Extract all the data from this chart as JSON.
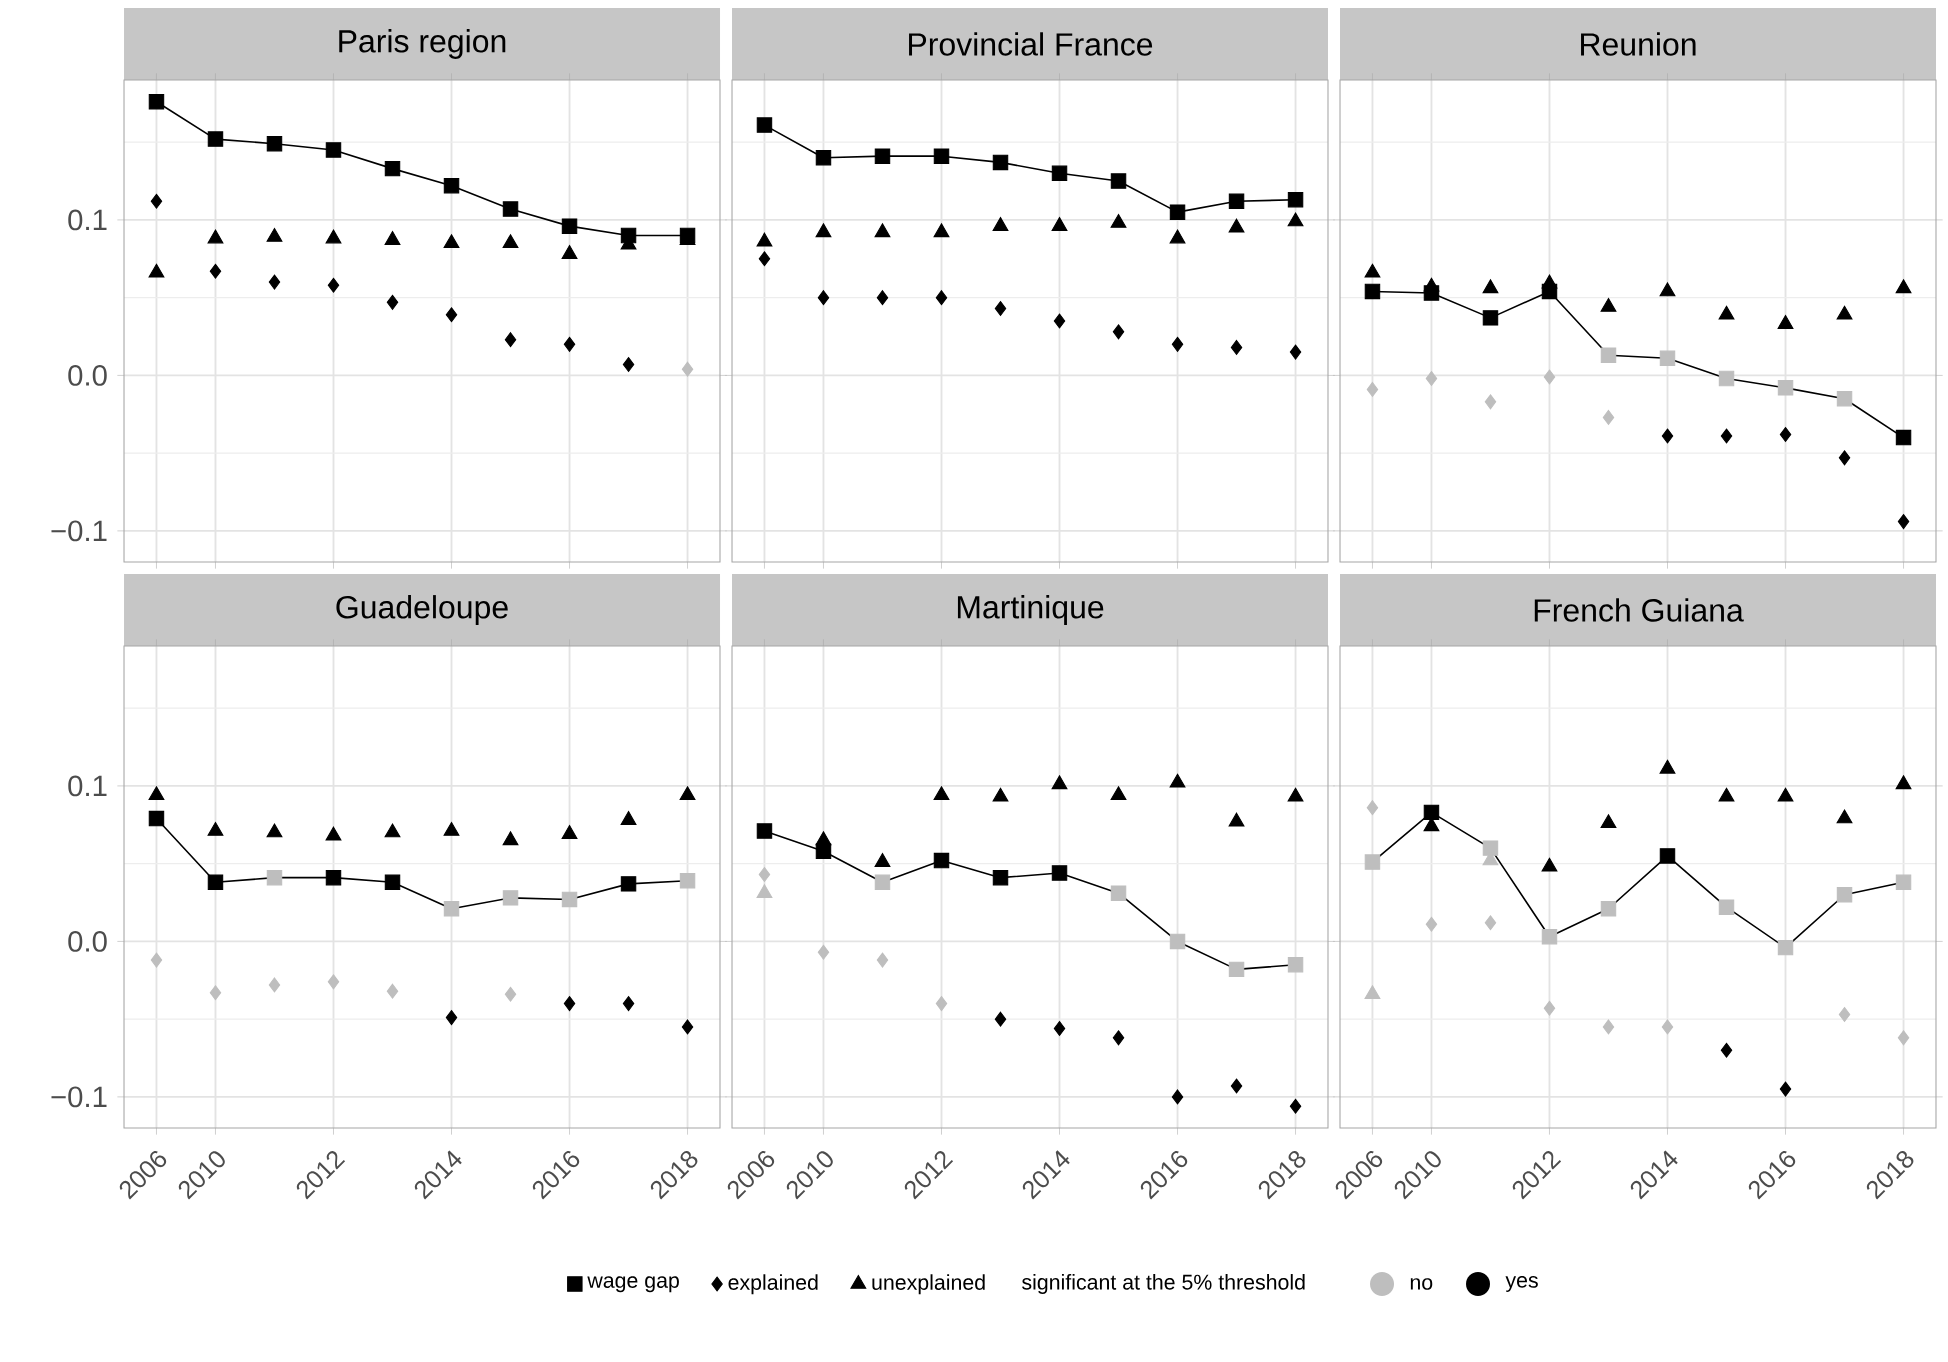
{
  "chart_data": [
    {
      "type": "scatter",
      "title": "Paris region",
      "categories": [
        "2006",
        "2010",
        null,
        "2012",
        null,
        "2014",
        null,
        "2016",
        null,
        "2018"
      ],
      "ylim": [
        -0.12,
        0.19
      ],
      "yticks": [
        {
          "value": -0.1,
          "label": "−0.1"
        },
        {
          "value": -0.05,
          "label": null
        },
        {
          "value": 0,
          "label": "0.0"
        },
        {
          "value": 0.05,
          "label": null
        },
        {
          "value": 0.1,
          "label": "0.1"
        },
        {
          "value": 0.15,
          "label": null
        }
      ],
      "grid": true,
      "tick_labels": "y",
      "series": [
        {
          "type": "line",
          "marker": "square",
          "color": "#000000",
          "values": [
            0.176,
            0.152,
            0.149,
            0.145,
            0.133,
            0.122,
            0.107,
            0.096,
            0.09,
            0.09
          ],
          "colors": [
            "#000000",
            "#000000",
            "#000000",
            "#000000",
            "#000000",
            "#000000",
            "#000000",
            "#000000",
            "#000000",
            "#000000"
          ]
        },
        {
          "type": "scatter",
          "marker": "diamond",
          "values": [
            0.112,
            0.067,
            0.06,
            0.058,
            0.047,
            0.039,
            0.023,
            0.02,
            0.007,
            0.004
          ],
          "colors": [
            "#000000",
            "#000000",
            "#000000",
            "#000000",
            "#000000",
            "#000000",
            "#000000",
            "#000000",
            "#000000",
            "#bebebe"
          ]
        },
        {
          "type": "scatter",
          "marker": "triangle",
          "values": [
            0.066,
            0.088,
            0.089,
            0.088,
            0.087,
            0.085,
            0.085,
            0.078,
            0.084,
            0.087
          ],
          "colors": [
            "#000000",
            "#000000",
            "#000000",
            "#000000",
            "#000000",
            "#000000",
            "#000000",
            "#000000",
            "#000000",
            "#000000"
          ]
        }
      ]
    },
    {
      "type": "scatter",
      "title": "Provincial France",
      "categories": [
        "2006",
        "2010",
        null,
        "2012",
        null,
        "2014",
        null,
        "2016",
        null,
        "2018"
      ],
      "ylim": [
        -0.12,
        0.19
      ],
      "yticks": [
        -0.1,
        {
          "value": -0.05,
          "label": null
        },
        0,
        {
          "value": 0.05,
          "label": null
        },
        0.1,
        {
          "value": 0.15,
          "label": null
        }
      ],
      "grid": true,
      "tick_labels": false,
      "series": [
        {
          "type": "line",
          "marker": "square",
          "color": "#000000",
          "values": [
            0.161,
            0.14,
            0.141,
            0.141,
            0.137,
            0.13,
            0.125,
            0.105,
            0.112,
            0.113
          ],
          "colors": [
            "#000000",
            "#000000",
            "#000000",
            "#000000",
            "#000000",
            "#000000",
            "#000000",
            "#000000",
            "#000000",
            "#000000"
          ]
        },
        {
          "type": "scatter",
          "marker": "diamond",
          "values": [
            0.075,
            0.05,
            0.05,
            0.05,
            0.043,
            0.035,
            0.028,
            0.02,
            0.018,
            0.015
          ],
          "colors": [
            "#000000",
            "#000000",
            "#000000",
            "#000000",
            "#000000",
            "#000000",
            "#000000",
            "#000000",
            "#000000",
            "#000000"
          ]
        },
        {
          "type": "scatter",
          "marker": "triangle",
          "values": [
            0.086,
            0.092,
            0.092,
            0.092,
            0.096,
            0.096,
            0.098,
            0.088,
            0.095,
            0.099
          ],
          "colors": [
            "#000000",
            "#000000",
            "#000000",
            "#000000",
            "#000000",
            "#000000",
            "#000000",
            "#000000",
            "#000000",
            "#000000"
          ]
        }
      ]
    },
    {
      "type": "scatter",
      "title": "Reunion",
      "categories": [
        "2006",
        "2010",
        null,
        "2012",
        null,
        "2014",
        null,
        "2016",
        null,
        "2018"
      ],
      "ylim": [
        -0.12,
        0.19
      ],
      "yticks": [
        -0.1,
        {
          "value": -0.05,
          "label": null
        },
        0,
        {
          "value": 0.05,
          "label": null
        },
        0.1,
        {
          "value": 0.15,
          "label": null
        }
      ],
      "grid": true,
      "tick_labels": false,
      "series": [
        {
          "type": "line",
          "marker": "square",
          "color": "#000000",
          "values": [
            0.054,
            0.053,
            0.037,
            0.054,
            0.013,
            0.011,
            -0.002,
            -0.008,
            -0.015,
            -0.04
          ],
          "colors": [
            "#000000",
            "#000000",
            "#000000",
            "#000000",
            "#bebebe",
            "#bebebe",
            "#bebebe",
            "#bebebe",
            "#bebebe",
            "#000000"
          ]
        },
        {
          "type": "scatter",
          "marker": "diamond",
          "values": [
            -0.009,
            -0.002,
            -0.017,
            -0.001,
            -0.027,
            -0.039,
            -0.039,
            -0.038,
            -0.053,
            -0.094
          ],
          "colors": [
            "#bebebe",
            "#bebebe",
            "#bebebe",
            "#bebebe",
            "#bebebe",
            "#000000",
            "#000000",
            "#000000",
            "#000000",
            "#000000"
          ]
        },
        {
          "type": "scatter",
          "marker": "triangle",
          "values": [
            0.066,
            0.057,
            0.056,
            0.059,
            0.044,
            0.054,
            0.039,
            0.033,
            0.039,
            0.056
          ],
          "colors": [
            "#000000",
            "#000000",
            "#000000",
            "#000000",
            "#000000",
            "#000000",
            "#000000",
            "#000000",
            "#000000",
            "#000000"
          ]
        }
      ]
    },
    {
      "type": "scatter",
      "title": "Guadeloupe",
      "categories": [
        "2006",
        "2010",
        null,
        "2012",
        null,
        "2014",
        null,
        "2016",
        null,
        "2018"
      ],
      "ylim": [
        -0.12,
        0.19
      ],
      "yticks": [
        {
          "value": -0.1,
          "label": "−0.1"
        },
        {
          "value": -0.05,
          "label": null
        },
        {
          "value": 0,
          "label": "0.0"
        },
        {
          "value": 0.05,
          "label": null
        },
        {
          "value": 0.1,
          "label": "0.1"
        },
        {
          "value": 0.15,
          "label": null
        }
      ],
      "grid": true,
      "series": [
        {
          "type": "line",
          "marker": "square",
          "color": "#000000",
          "values": [
            0.079,
            0.038,
            0.041,
            0.041,
            0.038,
            0.021,
            0.028,
            0.027,
            0.037,
            0.039
          ],
          "colors": [
            "#000000",
            "#000000",
            "#bebebe",
            "#000000",
            "#000000",
            "#bebebe",
            "#bebebe",
            "#bebebe",
            "#000000",
            "#bebebe"
          ]
        },
        {
          "type": "scatter",
          "marker": "diamond",
          "values": [
            -0.012,
            -0.033,
            -0.028,
            -0.026,
            -0.032,
            -0.049,
            -0.034,
            -0.04,
            -0.04,
            -0.055
          ],
          "colors": [
            "#bebebe",
            "#bebebe",
            "#bebebe",
            "#bebebe",
            "#bebebe",
            "#000000",
            "#bebebe",
            "#000000",
            "#000000",
            "#000000"
          ]
        },
        {
          "type": "scatter",
          "marker": "triangle",
          "values": [
            0.094,
            0.071,
            0.07,
            0.068,
            0.07,
            0.071,
            0.065,
            0.069,
            0.078,
            0.094
          ],
          "colors": [
            "#000000",
            "#000000",
            "#000000",
            "#000000",
            "#000000",
            "#000000",
            "#000000",
            "#000000",
            "#000000",
            "#000000"
          ]
        }
      ]
    },
    {
      "type": "scatter",
      "title": "Martinique",
      "categories": [
        "2006",
        "2010",
        null,
        "2012",
        null,
        "2014",
        null,
        "2016",
        null,
        "2018"
      ],
      "ylim": [
        -0.12,
        0.19
      ],
      "yticks": [
        -0.1,
        {
          "value": -0.05,
          "label": null
        },
        0,
        {
          "value": 0.05,
          "label": null
        },
        0.1,
        {
          "value": 0.15,
          "label": null
        }
      ],
      "grid": true,
      "tick_labels": "x",
      "series": [
        {
          "type": "line",
          "marker": "square",
          "color": "#000000",
          "values": [
            0.071,
            0.058,
            0.038,
            0.052,
            0.041,
            0.044,
            0.031,
            0.0,
            -0.018,
            -0.015
          ],
          "colors": [
            "#000000",
            "#000000",
            "#bebebe",
            "#000000",
            "#000000",
            "#000000",
            "#bebebe",
            "#bebebe",
            "#bebebe",
            "#bebebe"
          ]
        },
        {
          "type": "scatter",
          "marker": "diamond",
          "values": [
            0.043,
            -0.007,
            -0.012,
            -0.04,
            -0.05,
            -0.056,
            -0.062,
            -0.1,
            -0.093,
            -0.106
          ],
          "colors": [
            "#bebebe",
            "#bebebe",
            "#bebebe",
            "#bebebe",
            "#000000",
            "#000000",
            "#000000",
            "#000000",
            "#000000",
            "#000000"
          ]
        },
        {
          "type": "scatter",
          "marker": "triangle",
          "values": [
            0.031,
            0.065,
            0.051,
            0.094,
            0.093,
            0.101,
            0.094,
            0.102,
            0.077,
            0.093
          ],
          "colors": [
            "#bebebe",
            "#000000",
            "#000000",
            "#000000",
            "#000000",
            "#000000",
            "#000000",
            "#000000",
            "#000000",
            "#000000"
          ]
        }
      ]
    },
    {
      "type": "scatter",
      "title": "French Guiana",
      "categories": [
        "2006",
        "2010",
        null,
        "2012",
        null,
        "2014",
        null,
        "2016",
        null,
        "2018"
      ],
      "ylim": [
        -0.12,
        0.19
      ],
      "yticks": [
        -0.1,
        {
          "value": -0.05,
          "label": null
        },
        0,
        {
          "value": 0.05,
          "label": null
        },
        0.1,
        {
          "value": 0.15,
          "label": null
        }
      ],
      "grid": true,
      "tick_labels": "x",
      "legend": "bottom",
      "legend_title": "significant at the 5% threshold",
      "annotations": [
        "no",
        "yes"
      ],
      "series": [
        {
          "name": "wage gap",
          "type": "line",
          "marker": "square",
          "color": "#000000",
          "values": [
            0.051,
            0.083,
            0.06,
            0.003,
            0.021,
            0.055,
            0.022,
            -0.004,
            0.03,
            0.038
          ],
          "colors": [
            "#bebebe",
            "#000000",
            "#bebebe",
            "#bebebe",
            "#bebebe",
            "#000000",
            "#bebebe",
            "#bebebe",
            "#bebebe",
            "#bebebe"
          ]
        },
        {
          "name": "explained",
          "type": "scatter",
          "marker": "diamond",
          "color": "#000000",
          "values": [
            0.086,
            0.011,
            0.012,
            -0.043,
            -0.055,
            -0.055,
            -0.07,
            -0.095,
            -0.047,
            -0.062
          ],
          "colors": [
            "#bebebe",
            "#bebebe",
            "#bebebe",
            "#bebebe",
            "#bebebe",
            "#bebebe",
            "#000000",
            "#000000",
            "#bebebe",
            "#bebebe"
          ]
        },
        {
          "name": "unexplained",
          "type": "scatter",
          "marker": "triangle",
          "color": "#000000",
          "values": [
            -0.034,
            0.074,
            0.052,
            0.048,
            0.076,
            0.111,
            0.093,
            0.093,
            0.079,
            0.101
          ],
          "colors": [
            "#bebebe",
            "#000000",
            "#bebebe",
            "#000000",
            "#000000",
            "#000000",
            "#000000",
            "#000000",
            "#000000",
            "#000000"
          ]
        }
      ]
    }
  ]
}
